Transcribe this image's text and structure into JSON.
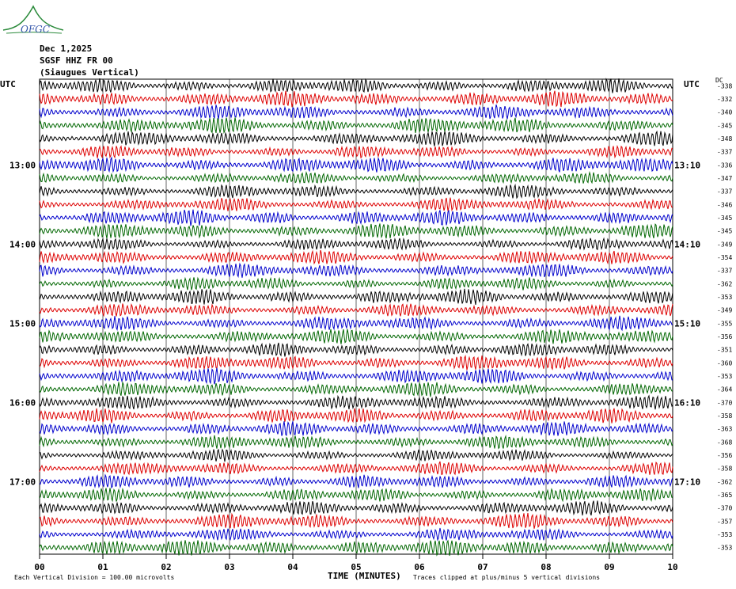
{
  "logo_text": "OFGC",
  "header": {
    "date": "Dec 1,2025",
    "station": "SGSF HHZ FR 00",
    "location": "(Siaugues Vertical)"
  },
  "left_axis_label": "UTC",
  "right_axis_label": "UTC",
  "dc_label": "DC",
  "footer": {
    "scale_note": "Each Vertical Division =  100.00 microvolts",
    "clip_note": "Traces clipped at plus/minus 5 vertical divisions"
  },
  "chart_data": {
    "type": "line",
    "title": "SGSF HHZ FR 00 (Siaugues Vertical)",
    "xlabel": "TIME (MINUTES)",
    "xlim": [
      0,
      10
    ],
    "x_ticks": [
      "00",
      "01",
      "02",
      "03",
      "04",
      "05",
      "06",
      "07",
      "08",
      "09",
      "10"
    ],
    "left_time_labels": [
      {
        "row": 6,
        "label": "13:00"
      },
      {
        "row": 12,
        "label": "14:00"
      },
      {
        "row": 18,
        "label": "15:00"
      },
      {
        "row": 24,
        "label": "16:00"
      },
      {
        "row": 30,
        "label": "17:00"
      }
    ],
    "right_time_labels": [
      {
        "row": 6,
        "label": "13:10"
      },
      {
        "row": 12,
        "label": "14:10"
      },
      {
        "row": 18,
        "label": "15:10"
      },
      {
        "row": 24,
        "label": "16:10"
      },
      {
        "row": 30,
        "label": "17:10"
      }
    ],
    "trace_colors": [
      "#000000",
      "#dd0000",
      "#0000cc",
      "#006600"
    ],
    "dc_offsets": [
      -338,
      -332,
      -340,
      -345,
      -348,
      -337,
      -336,
      -347,
      -337,
      -346,
      -345,
      -345,
      -349,
      -354,
      -337,
      -362,
      -353,
      -349,
      -355,
      -356,
      -351,
      -360,
      -353,
      -364,
      -370,
      -358,
      -363,
      -368,
      -356,
      -358,
      -362,
      -365,
      -370,
      -357,
      -353,
      -353
    ]
  }
}
